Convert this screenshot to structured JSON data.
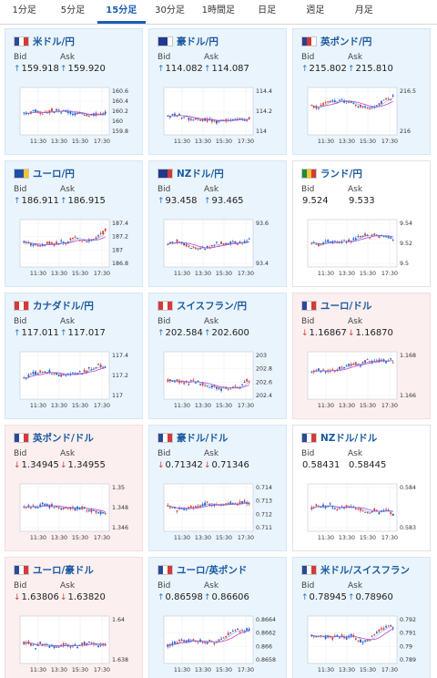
{
  "tabs": [
    "1分足",
    "5分足",
    "15分足",
    "30分足",
    "1時間足",
    "日足",
    "週足",
    "月足"
  ],
  "active_tab": 2,
  "labels": {
    "bid": "Bid",
    "ask": "Ask"
  },
  "x_ticks": [
    "11:30",
    "13:30",
    "15:30",
    "17:30"
  ],
  "colors": {
    "up_candle": "#1e5bd6",
    "down_candle": "#e23a3a",
    "ma": "#c23fd6",
    "ma2": "#2aa4c7",
    "up_arrow": "#1e74c7",
    "down_arrow": "#d23b3b"
  },
  "cards": [
    {
      "pair": "米ドル/円",
      "flag": [
        "#2a4a9a",
        "#ffffff",
        "#d23b3b"
      ],
      "trend": "up",
      "bid": "159.918",
      "ask": "159.920",
      "bid_dir": "up",
      "ask_dir": "up",
      "y_ticks": [
        "160.6",
        "160.4",
        "160.2",
        "160",
        "159.8"
      ]
    },
    {
      "pair": "豪ドル/円",
      "flag": [
        "#1f3b8f",
        "#1f3b8f",
        "#ffffff"
      ],
      "trend": "up",
      "bid": "114.082",
      "ask": "114.087",
      "bid_dir": "up",
      "ask_dir": "up",
      "y_ticks": [
        "114.4",
        "114.2",
        "114"
      ]
    },
    {
      "pair": "英ポンド/円",
      "flag": [
        "#2a3f8f",
        "#d23b3b",
        "#ffffff"
      ],
      "trend": "up",
      "bid": "215.802",
      "ask": "215.810",
      "bid_dir": "up",
      "ask_dir": "up",
      "y_ticks": [
        "216.5",
        "216"
      ]
    },
    {
      "pair": "ユーロ/円",
      "flag": [
        "#1e4fa8",
        "#1e4fa8",
        "#f2c62b"
      ],
      "trend": "up",
      "bid": "186.911",
      "ask": "186.915",
      "bid_dir": "up",
      "ask_dir": "up",
      "y_ticks": [
        "187.4",
        "187.2",
        "187",
        "186.8"
      ]
    },
    {
      "pair": "NZドル/円",
      "flag": [
        "#1f3b8f",
        "#1f3b8f",
        "#d23b3b"
      ],
      "trend": "up",
      "bid": "93.458",
      "ask": "93.465",
      "bid_dir": "up",
      "ask_dir": "up",
      "y_ticks": [
        "93.6",
        "93.4"
      ]
    },
    {
      "pair": "ランド/円",
      "flag": [
        "#1e8a3e",
        "#f2c62b",
        "#d23b3b"
      ],
      "trend": "flat",
      "bid": "9.524",
      "ask": "9.533",
      "bid_dir": "",
      "ask_dir": "",
      "y_ticks": [
        "9.54",
        "9.52",
        "9.5"
      ]
    },
    {
      "pair": "カナダドル/円",
      "flag": [
        "#d23b3b",
        "#ffffff",
        "#d23b3b"
      ],
      "trend": "up",
      "bid": "117.011",
      "ask": "117.017",
      "bid_dir": "up",
      "ask_dir": "up",
      "y_ticks": [
        "117.4",
        "117.2",
        "117"
      ]
    },
    {
      "pair": "スイスフラン/円",
      "flag": [
        "#d23b3b",
        "#ffffff",
        "#d23b3b"
      ],
      "trend": "up",
      "bid": "202.584",
      "ask": "202.600",
      "bid_dir": "up",
      "ask_dir": "up",
      "y_ticks": [
        "203",
        "202.8",
        "202.6",
        "202.4"
      ]
    },
    {
      "pair": "ユーロ/ドル",
      "flag": [
        "#2a4a9a",
        "#ffffff",
        "#d23b3b"
      ],
      "trend": "down",
      "bid": "1.16867",
      "ask": "1.16870",
      "bid_dir": "down",
      "ask_dir": "down",
      "y_ticks": [
        "1.168",
        "1.166"
      ]
    },
    {
      "pair": "英ポンド/ドル",
      "flag": [
        "#2a4a9a",
        "#ffffff",
        "#d23b3b"
      ],
      "trend": "down",
      "bid": "1.34945",
      "ask": "1.34955",
      "bid_dir": "down",
      "ask_dir": "down",
      "y_ticks": [
        "1.35",
        "1.348",
        "1.346"
      ]
    },
    {
      "pair": "豪ドル/ドル",
      "flag": [
        "#2a4a9a",
        "#ffffff",
        "#d23b3b"
      ],
      "trend": "up",
      "bid": "0.71342",
      "ask": "0.71346",
      "bid_dir": "down",
      "ask_dir": "down",
      "y_ticks": [
        "0.714",
        "0.713",
        "0.712",
        "0.711"
      ]
    },
    {
      "pair": "NZドル/ドル",
      "flag": [
        "#2a4a9a",
        "#ffffff",
        "#d23b3b"
      ],
      "trend": "flat",
      "bid": "0.58431",
      "ask": "0.58445",
      "bid_dir": "",
      "ask_dir": "",
      "y_ticks": [
        "0.584",
        "0.583"
      ]
    },
    {
      "pair": "ユーロ/豪ドル",
      "flag": [
        "#2a4a9a",
        "#ffffff",
        "#d23b3b"
      ],
      "trend": "down",
      "bid": "1.63806",
      "ask": "1.63820",
      "bid_dir": "down",
      "ask_dir": "down",
      "y_ticks": [
        "1.64",
        "1.638"
      ]
    },
    {
      "pair": "ユーロ/英ポンド",
      "flag": [
        "#2a4a9a",
        "#ffffff",
        "#d23b3b"
      ],
      "trend": "up",
      "bid": "0.86598",
      "ask": "0.86606",
      "bid_dir": "up",
      "ask_dir": "up",
      "y_ticks": [
        "0.8664",
        "0.8662",
        "0.866",
        "0.8658"
      ]
    },
    {
      "pair": "米ドル/スイスフラン",
      "flag": [
        "#2a4a9a",
        "#ffffff",
        "#d23b3b"
      ],
      "trend": "up",
      "bid": "0.78945",
      "ask": "0.78960",
      "bid_dir": "up",
      "ask_dir": "up",
      "y_ticks": [
        "0.792",
        "0.791",
        "0.79",
        "0.789"
      ]
    }
  ]
}
